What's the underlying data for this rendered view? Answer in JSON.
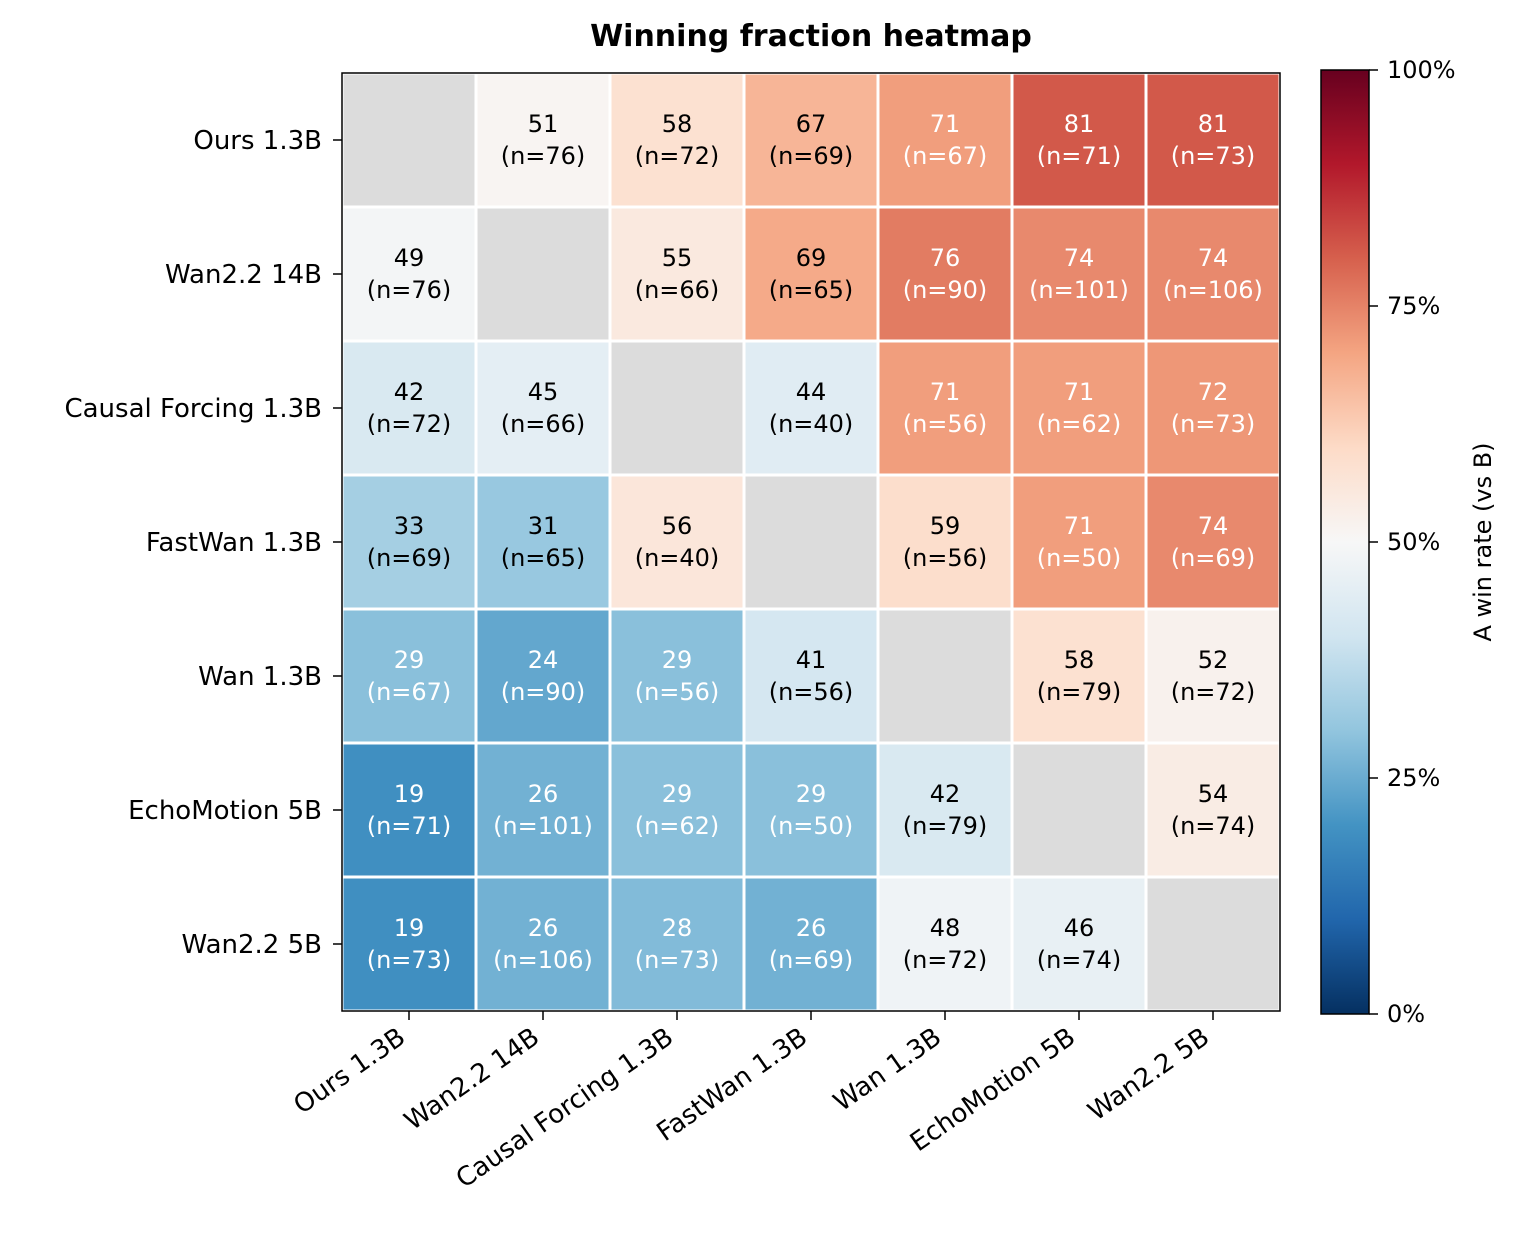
{
  "chart_data": {
    "type": "heatmap",
    "title": "Winning fraction heatmap",
    "rows": [
      "Ours 1.3B",
      "Wan2.2 14B",
      "Causal Forcing 1.3B",
      "FastWan  1.3B",
      "Wan 1.3B",
      "EchoMotion 5B",
      "Wan2.2 5B"
    ],
    "cols": [
      "Ours 1.3B",
      "Wan2.2 14B",
      "Causal Forcing 1.3B",
      "FastWan  1.3B",
      "Wan 1.3B",
      "EchoMotion 5B",
      "Wan2.2 5B"
    ],
    "values": [
      [
        null,
        51,
        58,
        67,
        71,
        81,
        81
      ],
      [
        49,
        null,
        55,
        69,
        76,
        74,
        74
      ],
      [
        42,
        45,
        null,
        44,
        71,
        71,
        72
      ],
      [
        33,
        31,
        56,
        null,
        59,
        71,
        74
      ],
      [
        29,
        24,
        29,
        41,
        null,
        58,
        52
      ],
      [
        19,
        26,
        29,
        29,
        42,
        null,
        54
      ],
      [
        19,
        26,
        28,
        26,
        48,
        46,
        null
      ]
    ],
    "counts": [
      [
        null,
        76,
        72,
        69,
        67,
        71,
        73
      ],
      [
        76,
        null,
        66,
        65,
        90,
        101,
        106
      ],
      [
        72,
        66,
        null,
        40,
        56,
        62,
        73
      ],
      [
        69,
        65,
        40,
        null,
        56,
        50,
        69
      ],
      [
        67,
        90,
        56,
        56,
        null,
        79,
        72
      ],
      [
        71,
        101,
        62,
        50,
        79,
        null,
        74
      ],
      [
        73,
        106,
        73,
        69,
        72,
        74,
        null
      ]
    ],
    "colorbar": {
      "label": "A win rate (vs B)",
      "range": [
        0,
        100
      ],
      "ticks": [
        "0%",
        "25%",
        "50%",
        "75%",
        "100%"
      ],
      "colormap": "RdBu_r"
    },
    "diagonal_color": "#dcdcdc"
  }
}
